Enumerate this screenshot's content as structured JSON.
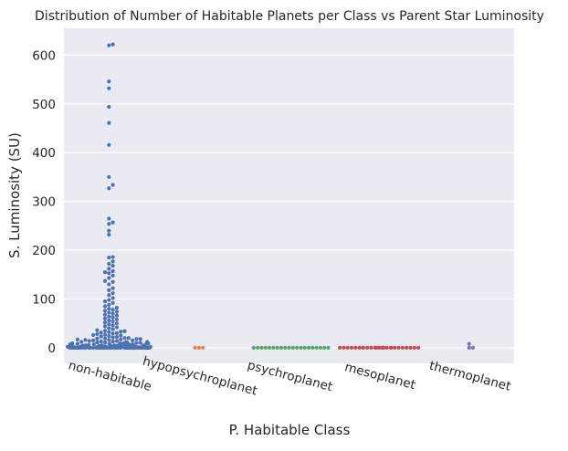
{
  "chart_data": {
    "type": "scatter",
    "subtype": "swarm",
    "title": "Distribution of Number of Habitable Planets per Class vs Parent Star Luminosity",
    "xlabel": "P. Habitable Class",
    "ylabel": "S. Luminosity (SU)",
    "ylim": [
      -32,
      655
    ],
    "yticks": [
      0,
      100,
      200,
      300,
      400,
      500,
      600
    ],
    "grid": true,
    "legend": "none",
    "background": "#eaeaf2",
    "categories": [
      "non-habitable",
      "hypopsychroplanet",
      "psychroplanet",
      "mesoplanet",
      "thermoplanet"
    ],
    "colors": [
      "#4c72b0",
      "#dd8452",
      "#55a868",
      "#c44e52",
      "#8172b3"
    ],
    "series": [
      {
        "category": "non-habitable",
        "values": [
          622,
          620,
          546,
          532,
          494,
          461,
          416,
          350,
          334,
          327,
          265,
          257,
          254,
          240,
          232,
          186,
          185,
          177,
          172,
          168,
          162,
          157,
          155,
          153,
          148,
          143,
          137,
          135,
          130,
          122,
          118,
          112,
          108,
          102,
          98,
          95,
          92,
          88,
          85,
          82,
          80,
          78,
          76,
          74,
          72,
          70,
          68,
          66,
          64,
          62,
          60,
          58,
          56,
          54,
          52,
          50,
          48,
          46,
          44,
          42,
          40,
          38,
          36,
          35,
          34,
          33,
          32,
          31,
          30,
          29,
          28,
          27,
          26,
          25,
          24,
          23,
          22,
          21,
          20,
          20,
          19,
          19,
          18,
          18,
          17,
          17,
          16,
          16,
          15,
          15,
          14,
          14,
          13,
          13,
          12,
          12,
          12,
          11,
          11,
          11,
          10,
          10,
          10,
          10,
          9,
          9,
          9,
          9,
          8,
          8,
          8,
          8,
          7,
          7,
          7,
          7,
          7,
          6,
          6,
          6,
          6,
          6,
          6,
          5,
          5,
          5,
          5,
          5,
          5,
          5,
          4,
          4,
          4,
          4,
          4,
          4,
          4,
          4,
          3,
          3,
          3,
          3,
          3,
          3,
          3,
          3,
          3,
          2,
          2,
          2,
          2,
          2,
          2,
          2,
          2,
          2,
          2,
          1,
          1,
          1,
          1,
          1,
          1,
          1,
          1,
          1,
          1,
          1,
          1,
          0.5,
          0.5,
          0.5,
          0.5,
          0.5,
          0.5,
          0.5,
          0.5,
          0.5,
          0.5,
          0.5,
          0.5,
          0.5,
          0.5,
          0,
          0,
          0,
          0,
          0,
          0,
          0,
          0,
          0,
          0,
          0,
          0,
          0,
          0,
          0,
          0,
          0,
          0,
          0,
          0,
          0,
          0,
          0,
          0,
          0,
          0,
          0,
          0,
          0,
          0,
          0,
          0,
          0,
          0,
          0,
          0,
          0,
          0,
          0,
          0,
          0,
          0,
          0,
          0,
          0,
          0,
          0,
          0,
          0,
          0,
          0,
          0,
          0,
          0,
          0,
          0,
          0,
          0,
          0,
          0,
          0,
          0,
          0,
          0,
          0,
          0,
          0,
          0,
          0,
          0,
          0,
          0
        ]
      },
      {
        "category": "hypopsychroplanet",
        "values": [
          0,
          0,
          0
        ]
      },
      {
        "category": "psychroplanet",
        "values": [
          0,
          0,
          0,
          0,
          0,
          0,
          0,
          0,
          0,
          0,
          0,
          0,
          0,
          0,
          0,
          0,
          0,
          0,
          0,
          0
        ]
      },
      {
        "category": "mesoplanet",
        "values": [
          0,
          0,
          0,
          0,
          0,
          0,
          0,
          0,
          0,
          0,
          0,
          0,
          0,
          0,
          0,
          0,
          0,
          0,
          0,
          0,
          0,
          0,
          0,
          0,
          0,
          0
        ]
      },
      {
        "category": "thermoplanet",
        "values": [
          8,
          0,
          0
        ]
      }
    ]
  }
}
